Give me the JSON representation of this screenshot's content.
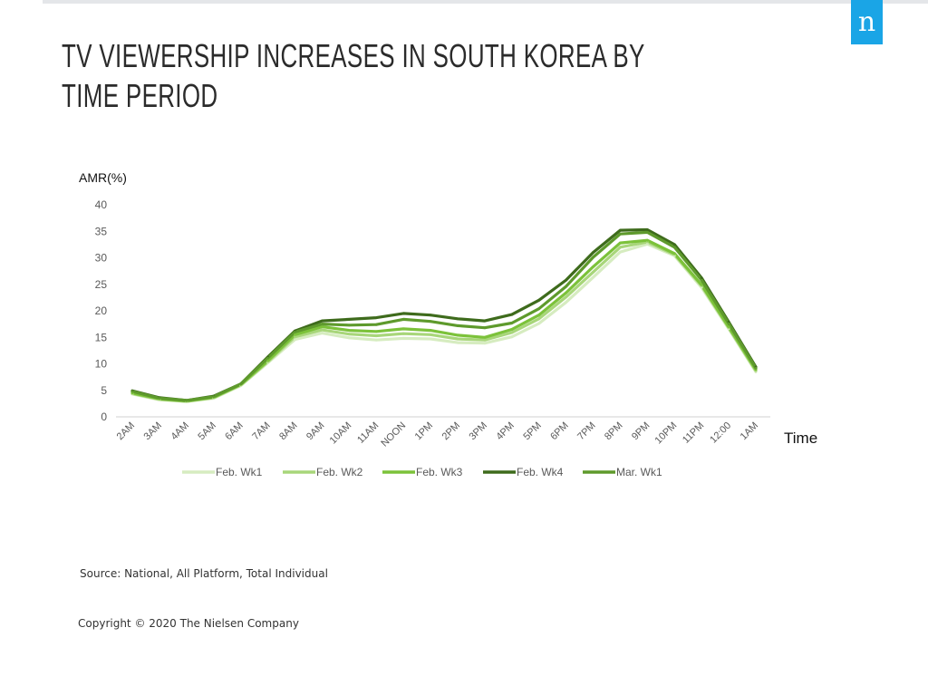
{
  "brand": {
    "logo_letter": "n",
    "logo_color": "#1aa5e6"
  },
  "title_lines": [
    "TV VIEWERSHIP INCREASES IN SOUTH KOREA BY",
    "TIME PERIOD"
  ],
  "footer": {
    "source": "Source: National, All Platform, Total Individual",
    "copyright": "Copyright © 2020 The Nielsen Company"
  },
  "chart_data": {
    "type": "line",
    "title": "TV VIEWERSHIP INCREASES IN SOUTH KOREA BY TIME PERIOD",
    "ylabel": "AMR(%)",
    "xlabel": "Time",
    "ylim": [
      0,
      40
    ],
    "yticks": [
      0,
      5,
      10,
      15,
      20,
      25,
      30,
      35,
      40
    ],
    "grid": false,
    "legend_position": "bottom",
    "categories": [
      "2AM",
      "3AM",
      "4AM",
      "5AM",
      "6AM",
      "7AM",
      "8AM",
      "9AM",
      "10AM",
      "11AM",
      "NOON",
      "1PM",
      "2PM",
      "3PM",
      "4PM",
      "5PM",
      "6PM",
      "7PM",
      "8PM",
      "9PM",
      "10PM",
      "11PM",
      "12:00",
      "1AM"
    ],
    "series": [
      {
        "name": "Feb. Wk1",
        "color": "#d6ecc0",
        "values": [
          4.3,
          3.2,
          2.9,
          3.5,
          5.9,
          10.2,
          14.6,
          15.8,
          14.9,
          14.5,
          14.8,
          14.7,
          14.0,
          13.9,
          15.1,
          17.6,
          21.6,
          26.3,
          31.1,
          32.6,
          30.4,
          24.4,
          16.6,
          8.5
        ]
      },
      {
        "name": "Feb. Wk2",
        "color": "#a8d67a",
        "values": [
          4.4,
          3.3,
          2.9,
          3.6,
          6.0,
          10.4,
          15.1,
          16.4,
          15.6,
          15.3,
          15.7,
          15.5,
          14.7,
          14.5,
          15.9,
          18.5,
          22.6,
          27.3,
          32.0,
          33.0,
          30.6,
          24.7,
          16.8,
          8.7
        ]
      },
      {
        "name": "Feb. Wk3",
        "color": "#7cc23a",
        "values": [
          4.5,
          3.4,
          3.0,
          3.7,
          6.1,
          10.6,
          15.5,
          17.0,
          16.3,
          16.1,
          16.6,
          16.3,
          15.4,
          15.0,
          16.5,
          19.2,
          23.4,
          28.3,
          32.8,
          33.3,
          30.8,
          24.9,
          17.0,
          8.9
        ]
      },
      {
        "name": "Feb. Wk4",
        "color": "#3e6b1c",
        "values": [
          4.9,
          3.6,
          3.1,
          3.9,
          6.2,
          11.3,
          16.2,
          18.1,
          18.4,
          18.7,
          19.5,
          19.2,
          18.5,
          18.1,
          19.3,
          22.0,
          25.8,
          31.0,
          35.2,
          35.3,
          32.5,
          26.2,
          17.9,
          9.4
        ]
      },
      {
        "name": "Mar. Wk1",
        "color": "#5e9a2c",
        "values": [
          4.8,
          3.5,
          3.1,
          3.8,
          6.2,
          11.1,
          16.0,
          17.5,
          17.3,
          17.4,
          18.4,
          18.0,
          17.2,
          16.8,
          17.7,
          20.4,
          24.6,
          30.1,
          34.5,
          34.8,
          32.0,
          25.8,
          17.6,
          9.2
        ]
      }
    ]
  }
}
